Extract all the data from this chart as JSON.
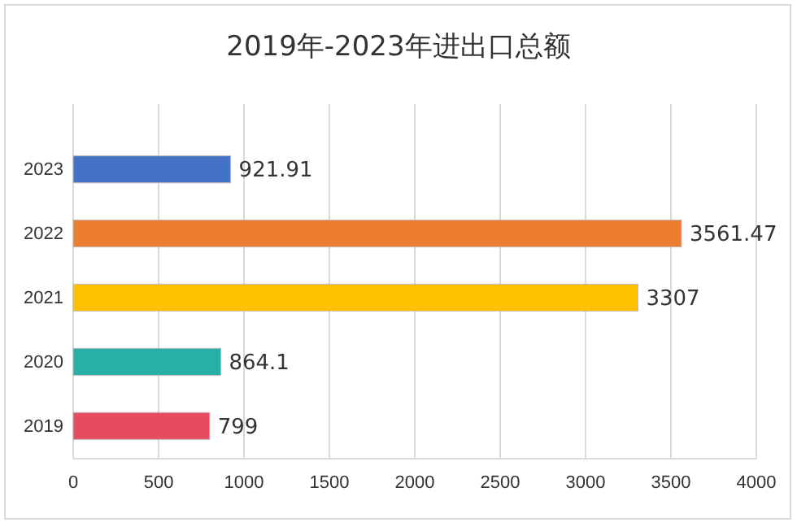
{
  "chart_data": {
    "type": "bar",
    "orientation": "horizontal",
    "title": "2019年-2023年进出口总额",
    "categories": [
      "2023",
      "2022",
      "2021",
      "2020",
      "2019"
    ],
    "values": [
      921.91,
      3561.47,
      3307,
      864.1,
      799
    ],
    "colors": [
      "#4472c4",
      "#ed7d31",
      "#ffc000",
      "#26b0a6",
      "#e84a5f"
    ],
    "xlim": [
      0,
      4000
    ],
    "xticks": [
      0,
      500,
      1000,
      1500,
      2000,
      2500,
      3000,
      3500,
      4000
    ],
    "grid": "x",
    "data_labels": true
  }
}
